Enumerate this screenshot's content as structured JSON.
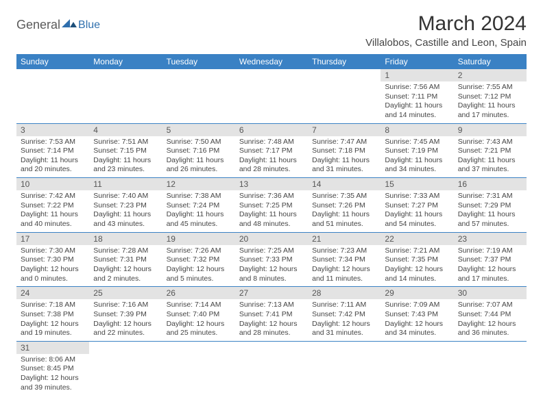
{
  "logo": {
    "general": "General",
    "blue": "Blue"
  },
  "title": "March 2024",
  "location": "Villalobos, Castille and Leon, Spain",
  "dayHeaders": [
    "Sunday",
    "Monday",
    "Tuesday",
    "Wednesday",
    "Thursday",
    "Friday",
    "Saturday"
  ],
  "colors": {
    "header_bg": "#3a81c4",
    "header_fg": "#ffffff",
    "daynum_bg": "#e3e3e3",
    "cell_border": "#3a81c4",
    "logo_blue": "#2f6fad"
  },
  "weeks": [
    [
      null,
      null,
      null,
      null,
      null,
      {
        "n": "1",
        "sr": "Sunrise: 7:56 AM",
        "ss": "Sunset: 7:11 PM",
        "dl": "Daylight: 11 hours and 14 minutes."
      },
      {
        "n": "2",
        "sr": "Sunrise: 7:55 AM",
        "ss": "Sunset: 7:12 PM",
        "dl": "Daylight: 11 hours and 17 minutes."
      }
    ],
    [
      {
        "n": "3",
        "sr": "Sunrise: 7:53 AM",
        "ss": "Sunset: 7:14 PM",
        "dl": "Daylight: 11 hours and 20 minutes."
      },
      {
        "n": "4",
        "sr": "Sunrise: 7:51 AM",
        "ss": "Sunset: 7:15 PM",
        "dl": "Daylight: 11 hours and 23 minutes."
      },
      {
        "n": "5",
        "sr": "Sunrise: 7:50 AM",
        "ss": "Sunset: 7:16 PM",
        "dl": "Daylight: 11 hours and 26 minutes."
      },
      {
        "n": "6",
        "sr": "Sunrise: 7:48 AM",
        "ss": "Sunset: 7:17 PM",
        "dl": "Daylight: 11 hours and 28 minutes."
      },
      {
        "n": "7",
        "sr": "Sunrise: 7:47 AM",
        "ss": "Sunset: 7:18 PM",
        "dl": "Daylight: 11 hours and 31 minutes."
      },
      {
        "n": "8",
        "sr": "Sunrise: 7:45 AM",
        "ss": "Sunset: 7:19 PM",
        "dl": "Daylight: 11 hours and 34 minutes."
      },
      {
        "n": "9",
        "sr": "Sunrise: 7:43 AM",
        "ss": "Sunset: 7:21 PM",
        "dl": "Daylight: 11 hours and 37 minutes."
      }
    ],
    [
      {
        "n": "10",
        "sr": "Sunrise: 7:42 AM",
        "ss": "Sunset: 7:22 PM",
        "dl": "Daylight: 11 hours and 40 minutes."
      },
      {
        "n": "11",
        "sr": "Sunrise: 7:40 AM",
        "ss": "Sunset: 7:23 PM",
        "dl": "Daylight: 11 hours and 43 minutes."
      },
      {
        "n": "12",
        "sr": "Sunrise: 7:38 AM",
        "ss": "Sunset: 7:24 PM",
        "dl": "Daylight: 11 hours and 45 minutes."
      },
      {
        "n": "13",
        "sr": "Sunrise: 7:36 AM",
        "ss": "Sunset: 7:25 PM",
        "dl": "Daylight: 11 hours and 48 minutes."
      },
      {
        "n": "14",
        "sr": "Sunrise: 7:35 AM",
        "ss": "Sunset: 7:26 PM",
        "dl": "Daylight: 11 hours and 51 minutes."
      },
      {
        "n": "15",
        "sr": "Sunrise: 7:33 AM",
        "ss": "Sunset: 7:27 PM",
        "dl": "Daylight: 11 hours and 54 minutes."
      },
      {
        "n": "16",
        "sr": "Sunrise: 7:31 AM",
        "ss": "Sunset: 7:29 PM",
        "dl": "Daylight: 11 hours and 57 minutes."
      }
    ],
    [
      {
        "n": "17",
        "sr": "Sunrise: 7:30 AM",
        "ss": "Sunset: 7:30 PM",
        "dl": "Daylight: 12 hours and 0 minutes."
      },
      {
        "n": "18",
        "sr": "Sunrise: 7:28 AM",
        "ss": "Sunset: 7:31 PM",
        "dl": "Daylight: 12 hours and 2 minutes."
      },
      {
        "n": "19",
        "sr": "Sunrise: 7:26 AM",
        "ss": "Sunset: 7:32 PM",
        "dl": "Daylight: 12 hours and 5 minutes."
      },
      {
        "n": "20",
        "sr": "Sunrise: 7:25 AM",
        "ss": "Sunset: 7:33 PM",
        "dl": "Daylight: 12 hours and 8 minutes."
      },
      {
        "n": "21",
        "sr": "Sunrise: 7:23 AM",
        "ss": "Sunset: 7:34 PM",
        "dl": "Daylight: 12 hours and 11 minutes."
      },
      {
        "n": "22",
        "sr": "Sunrise: 7:21 AM",
        "ss": "Sunset: 7:35 PM",
        "dl": "Daylight: 12 hours and 14 minutes."
      },
      {
        "n": "23",
        "sr": "Sunrise: 7:19 AM",
        "ss": "Sunset: 7:37 PM",
        "dl": "Daylight: 12 hours and 17 minutes."
      }
    ],
    [
      {
        "n": "24",
        "sr": "Sunrise: 7:18 AM",
        "ss": "Sunset: 7:38 PM",
        "dl": "Daylight: 12 hours and 19 minutes."
      },
      {
        "n": "25",
        "sr": "Sunrise: 7:16 AM",
        "ss": "Sunset: 7:39 PM",
        "dl": "Daylight: 12 hours and 22 minutes."
      },
      {
        "n": "26",
        "sr": "Sunrise: 7:14 AM",
        "ss": "Sunset: 7:40 PM",
        "dl": "Daylight: 12 hours and 25 minutes."
      },
      {
        "n": "27",
        "sr": "Sunrise: 7:13 AM",
        "ss": "Sunset: 7:41 PM",
        "dl": "Daylight: 12 hours and 28 minutes."
      },
      {
        "n": "28",
        "sr": "Sunrise: 7:11 AM",
        "ss": "Sunset: 7:42 PM",
        "dl": "Daylight: 12 hours and 31 minutes."
      },
      {
        "n": "29",
        "sr": "Sunrise: 7:09 AM",
        "ss": "Sunset: 7:43 PM",
        "dl": "Daylight: 12 hours and 34 minutes."
      },
      {
        "n": "30",
        "sr": "Sunrise: 7:07 AM",
        "ss": "Sunset: 7:44 PM",
        "dl": "Daylight: 12 hours and 36 minutes."
      }
    ],
    [
      {
        "n": "31",
        "sr": "Sunrise: 8:06 AM",
        "ss": "Sunset: 8:45 PM",
        "dl": "Daylight: 12 hours and 39 minutes."
      },
      null,
      null,
      null,
      null,
      null,
      null
    ]
  ]
}
